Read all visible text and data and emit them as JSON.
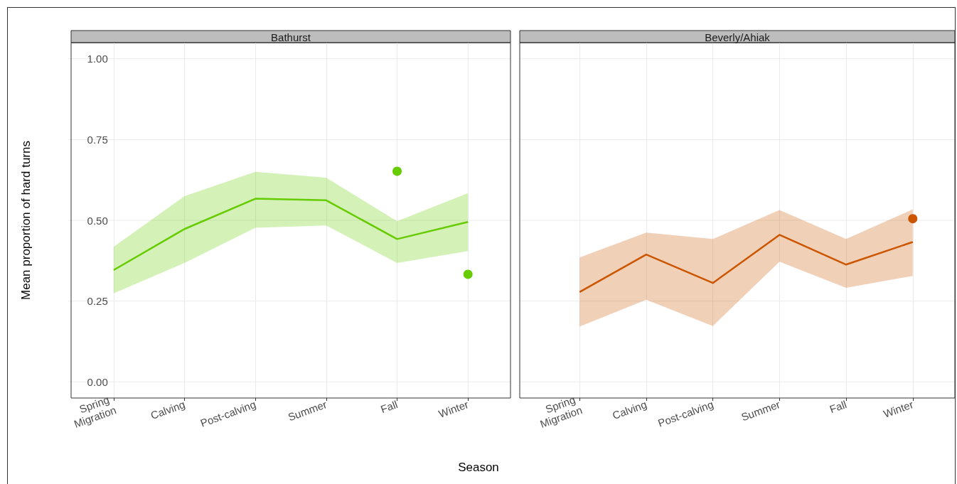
{
  "chart_data": [
    {
      "type": "line",
      "title": "Bathurst",
      "xlabel": "Season",
      "ylabel": "Mean proportion of hard turns",
      "categories": [
        "Spring Migration",
        "Calving",
        "Post-calving",
        "Summer",
        "Fall",
        "Winter"
      ],
      "ylim": [
        -0.05,
        1.05
      ],
      "yticks": [
        {
          "value": 0,
          "label": "0.00"
        },
        {
          "value": 0.25,
          "label": "0.25"
        },
        {
          "value": 0.5,
          "label": "0.50"
        },
        {
          "value": 0.75,
          "label": "0.75"
        },
        {
          "value": 1,
          "label": "1.00"
        }
      ],
      "grid": true,
      "series": [
        {
          "type": "line",
          "marker": "none",
          "color": "#66cc00",
          "values": [
            0.346,
            0.473,
            0.567,
            0.562,
            0.442,
            0.495
          ],
          "lower": [
            0.274,
            0.368,
            0.477,
            0.484,
            0.368,
            0.405
          ],
          "upper": [
            0.418,
            0.575,
            0.65,
            0.632,
            0.497,
            0.584
          ]
        },
        {
          "type": "scatter",
          "marker": "circle",
          "color": "#66cc00",
          "x": [
            "Fall",
            "Winter"
          ],
          "values": [
            0.652,
            0.333
          ]
        }
      ]
    },
    {
      "type": "line",
      "title": "Beverly/Ahiak",
      "categories": [
        "Spring Migration",
        "Calving",
        "Post-calving",
        "Summer",
        "Fall",
        "Winter"
      ],
      "ylim": [
        -0.05,
        1.05
      ],
      "yticks": [
        0,
        0.25,
        0.5,
        0.75,
        1
      ],
      "grid": true,
      "tick_labels": "x",
      "series": [
        {
          "type": "line",
          "marker": "none",
          "color": "#cc5500",
          "values": [
            0.278,
            0.394,
            0.306,
            0.455,
            0.363,
            0.433
          ],
          "lower": [
            0.171,
            0.254,
            0.173,
            0.372,
            0.291,
            0.328
          ],
          "upper": [
            0.385,
            0.462,
            0.442,
            0.532,
            0.442,
            0.534
          ]
        },
        {
          "type": "scatter",
          "marker": "circle",
          "color": "#cc5500",
          "x": [
            "Winter"
          ],
          "values": [
            0.505
          ]
        }
      ]
    }
  ]
}
